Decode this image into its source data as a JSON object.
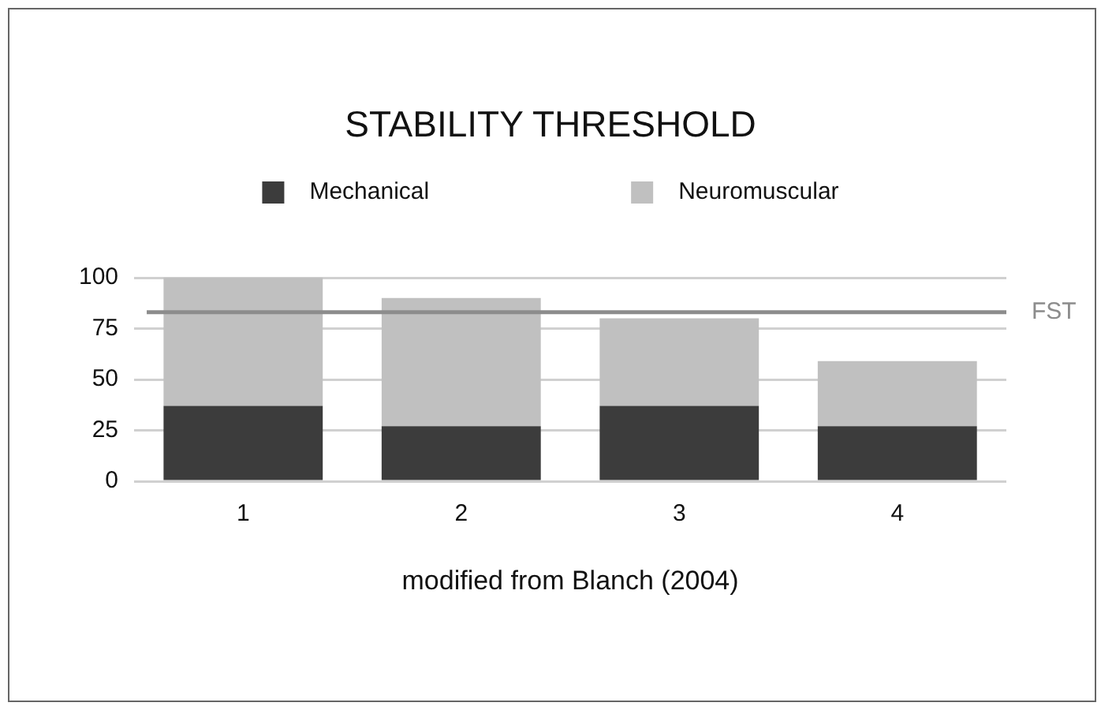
{
  "chart_data": {
    "type": "bar",
    "title": "STABILITY THRESHOLD",
    "categories": [
      "1",
      "2",
      "3",
      "4"
    ],
    "series": [
      {
        "name": "Mechanical",
        "color": "#3c3c3c",
        "values": [
          37,
          27,
          37,
          27
        ]
      },
      {
        "name": "Neuromuscular",
        "color": "#c0c0c0",
        "values": [
          63,
          63,
          43,
          32
        ]
      }
    ],
    "stacked": true,
    "ylim": [
      0,
      100
    ],
    "yticks": [
      0,
      25,
      50,
      75,
      100
    ],
    "grid": "y",
    "legend": "top",
    "ref_lines": [
      {
        "axis": "y",
        "value": 83,
        "label": "FST",
        "color": "#8c8c8c"
      }
    ],
    "annotations": [
      "modified from Blanch (2004)"
    ]
  }
}
